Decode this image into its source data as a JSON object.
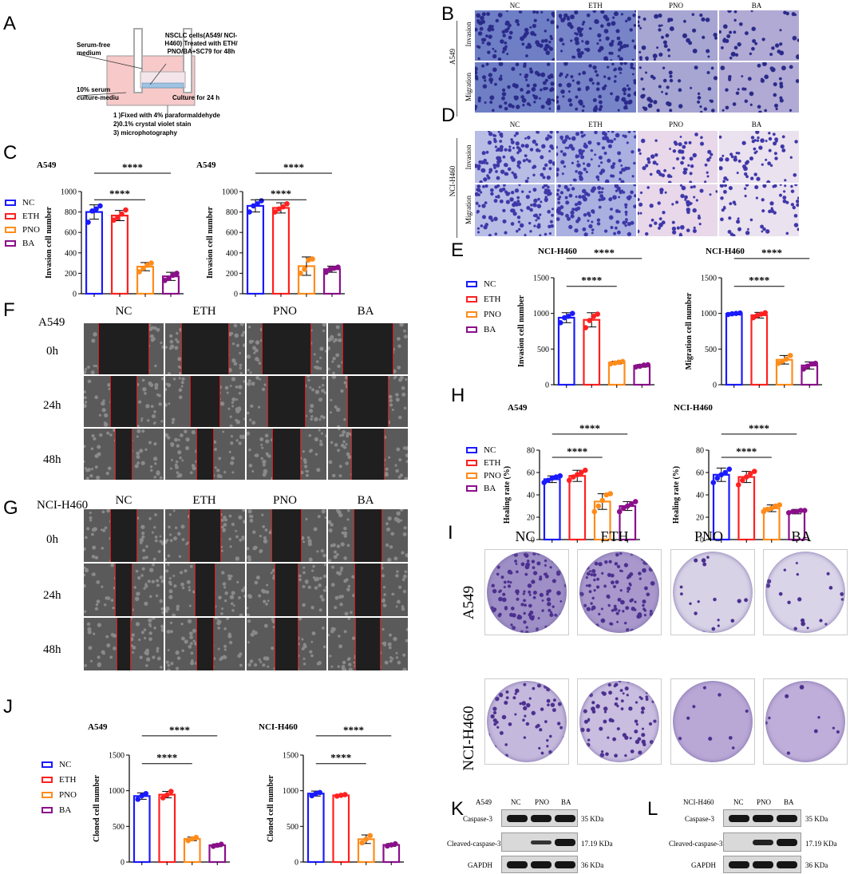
{
  "panel_letters": {
    "A": "A",
    "B": "B",
    "C": "C",
    "D": "D",
    "E": "E",
    "F": "F",
    "G": "G",
    "H": "H",
    "I": "I",
    "J": "J",
    "K": "K",
    "L": "L"
  },
  "panel_a": {
    "serum_free": "Serum-free medium",
    "cells": "NSCLC cells(A549/ NCI-H460) Treated with ETH/ PNO/BA+SC79 for 48h",
    "serum": "10% serum culture-mediu",
    "culture": "Culture for 24 h",
    "step1": "1 )Fixed with 4% paraformaldehyde",
    "step2": "2)0.1% crystal violet stain",
    "step3": "3) microphotography"
  },
  "transwell_cols": [
    "NC",
    "ETH",
    "PNO",
    "BA"
  ],
  "panel_b": {
    "cell_line": "A549",
    "rows": [
      "Invasion",
      "Migration"
    ]
  },
  "panel_d": {
    "cell_line": "NCI-H460",
    "rows": [
      "Invasion",
      "Migration"
    ]
  },
  "wound_cols": [
    "NC",
    "ETH",
    "PNO",
    "BA"
  ],
  "panel_f": {
    "cell_line": "A549",
    "rows": [
      "0h",
      "24h",
      "48h"
    ]
  },
  "panel_g": {
    "cell_line": "NCI-H460",
    "rows": [
      "0h",
      "24h",
      "48h"
    ]
  },
  "panel_i": {
    "cols": [
      "NC",
      "ETH",
      "PNO",
      "BA"
    ],
    "rows": [
      "A549",
      "NCI-H460"
    ]
  },
  "legend": [
    "NC",
    "ETH",
    "PNO",
    "BA"
  ],
  "colors": {
    "NC": "#1a1aff",
    "ETH": "#ff2020",
    "PNO": "#ff8c1a",
    "BA": "#8b0f8b"
  },
  "significance": "****",
  "chart_data": [
    {
      "id": "C1",
      "type": "bar",
      "title": "A549",
      "ylabel": "Invasion cell number",
      "categories": [
        "NC",
        "ETH",
        "PNO",
        "BA"
      ],
      "values": [
        800,
        765,
        265,
        170
      ],
      "errors": [
        70,
        50,
        40,
        40
      ],
      "ylim": [
        0,
        1000
      ],
      "yticks": [
        0,
        200,
        400,
        600,
        800,
        1000
      ],
      "points": [
        [
          700,
          810,
          830,
          860
        ],
        [
          720,
          745,
          780,
          820
        ],
        [
          215,
          250,
          280,
          300
        ],
        [
          130,
          150,
          180,
          200
        ]
      ]
    },
    {
      "id": "C2",
      "type": "bar",
      "title": "A549",
      "ylabel": "Invasion cell number",
      "categories": [
        "NC",
        "ETH",
        "PNO",
        "BA"
      ],
      "values": [
        860,
        840,
        270,
        240
      ],
      "errors": [
        60,
        50,
        90,
        30
      ],
      "ylim": [
        0,
        1000
      ],
      "yticks": [
        0,
        200,
        400,
        600,
        800,
        1000
      ],
      "points": [
        [
          800,
          860,
          880,
          910
        ],
        [
          800,
          830,
          850,
          880
        ],
        [
          200,
          240,
          330,
          340
        ],
        [
          210,
          240,
          250,
          260
        ]
      ]
    },
    {
      "id": "E1",
      "type": "bar",
      "title": "NCI-H460",
      "ylabel": "Invasion cell number",
      "categories": [
        "NC",
        "ETH",
        "PNO",
        "BA"
      ],
      "values": [
        940,
        910,
        310,
        265
      ],
      "errors": [
        70,
        100,
        20,
        20
      ],
      "ylim": [
        0,
        1500
      ],
      "yticks": [
        0,
        500,
        1000,
        1500
      ],
      "points": [
        [
          870,
          940,
          960,
          1000
        ],
        [
          800,
          900,
          960,
          990
        ],
        [
          295,
          305,
          315,
          325
        ],
        [
          250,
          260,
          275,
          280
        ]
      ]
    },
    {
      "id": "E2",
      "type": "bar",
      "title": "NCI-H460",
      "ylabel": "Migration cell number",
      "categories": [
        "NC",
        "ETH",
        "PNO",
        "BA"
      ],
      "values": [
        995,
        975,
        350,
        270
      ],
      "errors": [
        15,
        40,
        60,
        50
      ],
      "ylim": [
        0,
        1500
      ],
      "yticks": [
        0,
        500,
        1000,
        1500
      ],
      "points": [
        [
          985,
          995,
          1000,
          1005
        ],
        [
          940,
          970,
          990,
          1010
        ],
        [
          300,
          330,
          360,
          410
        ],
        [
          220,
          260,
          290,
          300
        ]
      ]
    },
    {
      "id": "H1",
      "type": "bar",
      "title": "A549",
      "ylabel": "Healing rate (%)",
      "categories": [
        "NC",
        "ETH",
        "PNO",
        "BA"
      ],
      "values": [
        54,
        57,
        34,
        30
      ],
      "errors": [
        3,
        5,
        7,
        4
      ],
      "ylim": [
        0,
        80
      ],
      "yticks": [
        0,
        20,
        40,
        60,
        80
      ],
      "points": [
        [
          51,
          53,
          55,
          56,
          57
        ],
        [
          53,
          56,
          58,
          60,
          62
        ],
        [
          25,
          30,
          35,
          40,
          41
        ],
        [
          25,
          28,
          30,
          32,
          34
        ]
      ]
    },
    {
      "id": "H2",
      "type": "bar",
      "title": "NCI-H460",
      "ylabel": "Healing rate (%)",
      "categories": [
        "NC",
        "ETH",
        "PNO",
        "BA"
      ],
      "values": [
        58,
        56,
        28,
        25
      ],
      "errors": [
        6,
        5,
        3,
        2
      ],
      "ylim": [
        0,
        80
      ],
      "yticks": [
        0,
        20,
        40,
        60,
        80
      ],
      "points": [
        [
          51,
          55,
          58,
          60,
          63
        ],
        [
          49,
          53,
          56,
          59,
          61
        ],
        [
          25,
          27,
          28,
          30,
          31
        ],
        [
          24,
          25,
          25,
          26,
          26
        ]
      ]
    },
    {
      "id": "J1",
      "type": "bar",
      "title": "A549",
      "ylabel": "Cloned cell number",
      "categories": [
        "NC",
        "ETH",
        "PNO",
        "BA"
      ],
      "values": [
        925,
        945,
        325,
        235
      ],
      "errors": [
        45,
        45,
        25,
        20
      ],
      "ylim": [
        0,
        1500
      ],
      "yticks": [
        0,
        500,
        1000,
        1500
      ],
      "points": [
        [
          880,
          930,
          960
        ],
        [
          900,
          940,
          990
        ],
        [
          300,
          325,
          345
        ],
        [
          220,
          235,
          250
        ]
      ]
    },
    {
      "id": "J2",
      "type": "bar",
      "title": "NCI-H460",
      "ylabel": "Cloned cell number",
      "categories": [
        "NC",
        "ETH",
        "PNO",
        "BA"
      ],
      "values": [
        960,
        935,
        320,
        240
      ],
      "errors": [
        35,
        15,
        60,
        20
      ],
      "ylim": [
        0,
        1500
      ],
      "yticks": [
        0,
        500,
        1000,
        1500
      ],
      "points": [
        [
          930,
          960,
          975
        ],
        [
          925,
          935,
          945
        ],
        [
          270,
          320,
          370
        ],
        [
          225,
          240,
          255
        ]
      ]
    }
  ],
  "panel_k": {
    "cell_line": "A549",
    "lanes": [
      "NC",
      "PNO",
      "BA"
    ],
    "rows": [
      {
        "label": "Caspase-3",
        "kda": "35 KDa"
      },
      {
        "label": "Cleaved-caspase-3",
        "kda": "17.19 KDa"
      },
      {
        "label": "GAPDH",
        "kda": "36 KDa"
      }
    ]
  },
  "panel_l": {
    "cell_line": "NCI-H460",
    "lanes": [
      "NC",
      "PNO",
      "BA"
    ],
    "rows": [
      {
        "label": "Caspase-3",
        "kda": "35 KDa"
      },
      {
        "label": "Cleaved-caspase-3",
        "kda": "17.19 KDa"
      },
      {
        "label": "GAPDH",
        "kda": "36 KDa"
      }
    ]
  }
}
